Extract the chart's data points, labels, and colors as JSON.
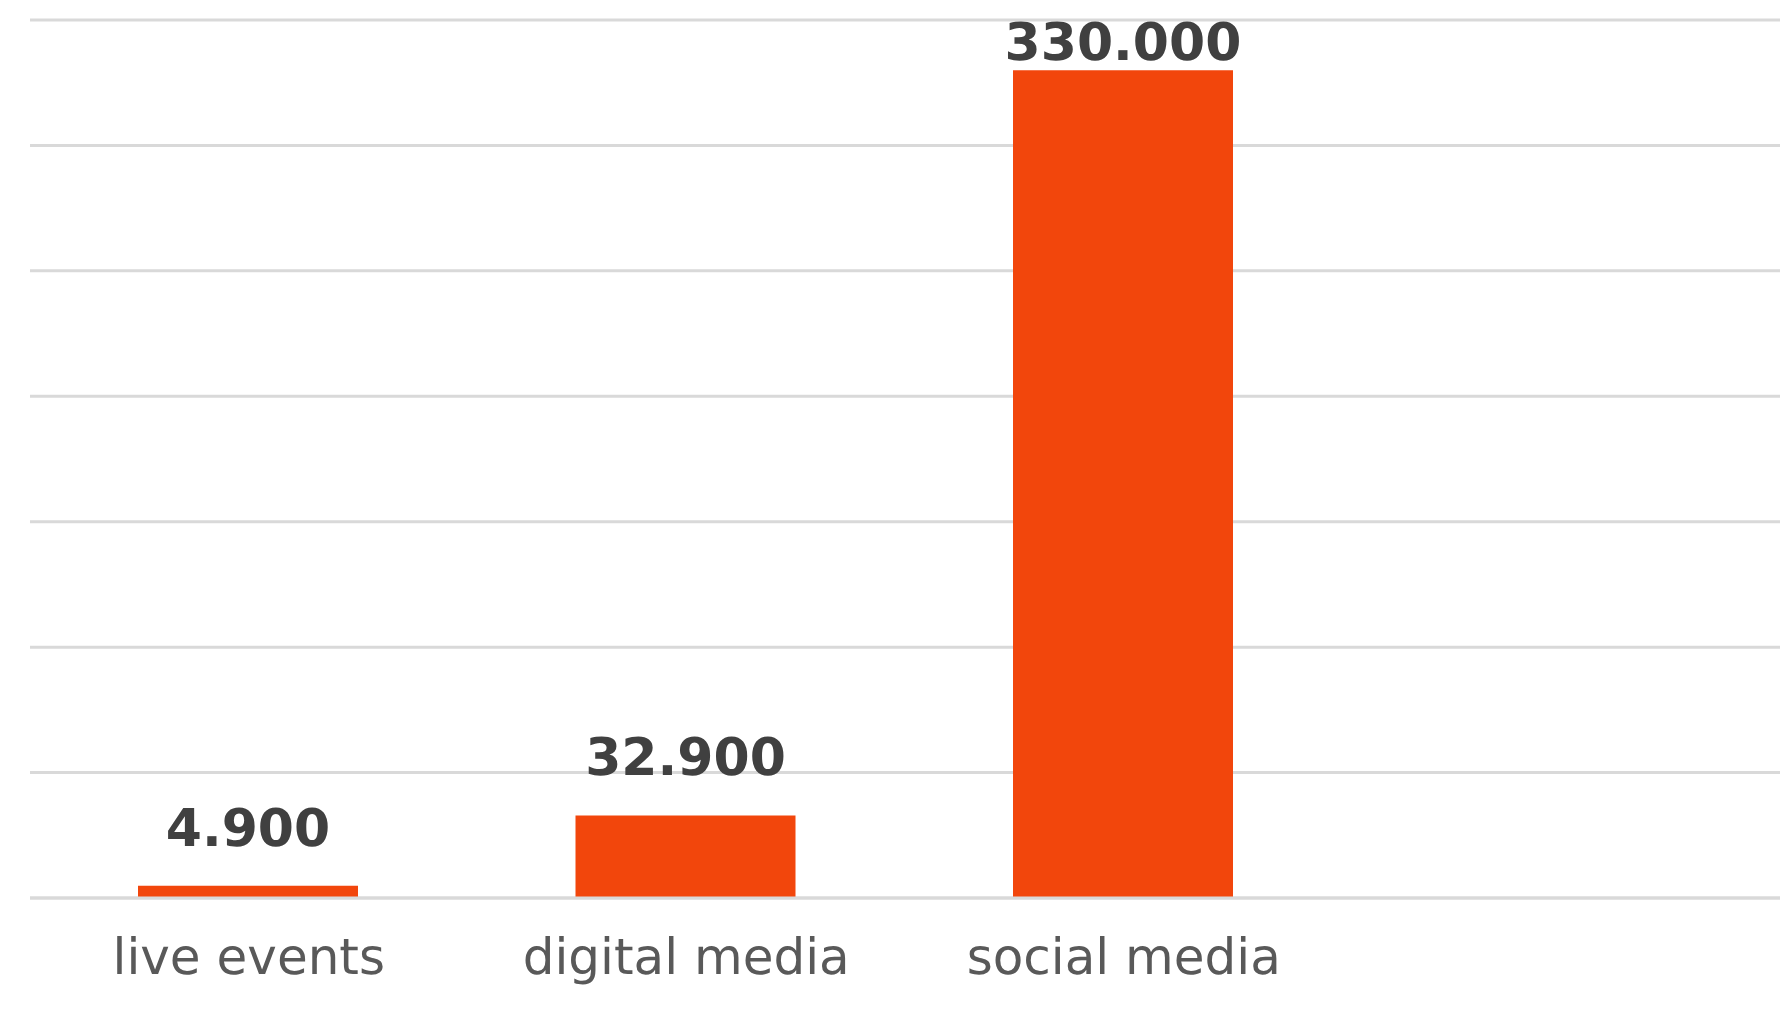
{
  "chart_data": {
    "type": "bar",
    "categories": [
      "live events",
      "digital media",
      "social media",
      null
    ],
    "values": [
      4900,
      32900,
      330000,
      null
    ],
    "value_labels": [
      "4.900",
      "32.900",
      "330.000",
      null
    ],
    "color": "#f2460c",
    "ylim": [
      0,
      350000
    ],
    "yticks": [
      {
        "value": 0,
        "label": null
      },
      {
        "value": 50000,
        "label": null
      },
      {
        "value": 100000,
        "label": null
      },
      {
        "value": 150000,
        "label": null
      },
      {
        "value": 200000,
        "label": null
      },
      {
        "value": 250000,
        "label": null
      },
      {
        "value": 300000,
        "label": null
      },
      {
        "value": 350000,
        "label": null
      }
    ],
    "tick_labels": "x",
    "grid": "y",
    "legend": false
  }
}
